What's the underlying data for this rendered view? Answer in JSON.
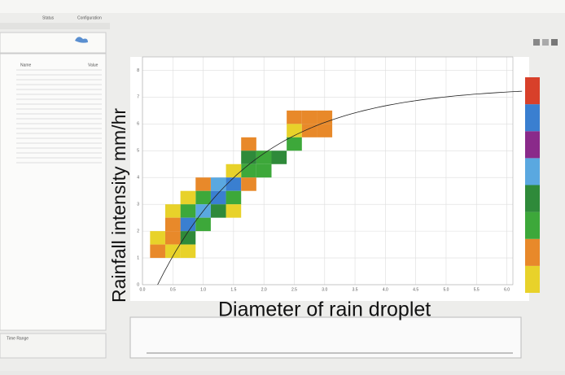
{
  "window": {
    "tabs": [
      "Status",
      "Configuration"
    ],
    "table_header": [
      "Name",
      "Value"
    ],
    "time_range": "Time Range"
  },
  "chart_data": {
    "type": "heatmap",
    "y_label": "Rainfall intensity  mm/hr",
    "x_label": "Diameter of rain droplet",
    "xlim": [
      0,
      6.1
    ],
    "ylim": [
      0,
      8.5
    ],
    "xticks": [
      {
        "value": 0,
        "label": "0.0"
      },
      {
        "value": 0.5,
        "label": "0.5"
      },
      {
        "value": 1,
        "label": "1.0"
      },
      {
        "value": 1.5,
        "label": "1.5"
      },
      {
        "value": 2,
        "label": "2.0"
      },
      {
        "value": 2.5,
        "label": "2.5"
      },
      {
        "value": 3,
        "label": "3.0"
      },
      {
        "value": 3.5,
        "label": "3.5"
      },
      {
        "value": 4,
        "label": "4.0"
      },
      {
        "value": 4.5,
        "label": "4.5"
      },
      {
        "value": 5,
        "label": "5.0"
      },
      {
        "value": 5.5,
        "label": "5.5"
      },
      {
        "value": 6,
        "label": "6.0"
      }
    ],
    "yticks": [
      0,
      1,
      2,
      3,
      4,
      5,
      6,
      7,
      8
    ],
    "grid": true,
    "colorbar": [
      "#e8d22a",
      "#e8892a",
      "#3da83a",
      "#2f8a3a",
      "#5aa8e0",
      "#8a2a8a",
      "#3a7fd0",
      "#d8402a"
    ],
    "cells": [
      {
        "x": 2.5,
        "y": 6.25,
        "color": "#e8892a"
      },
      {
        "x": 2.75,
        "y": 6.25,
        "color": "#e8892a"
      },
      {
        "x": 3.0,
        "y": 6.25,
        "color": "#e8892a"
      },
      {
        "x": 2.5,
        "y": 5.75,
        "color": "#e8d22a"
      },
      {
        "x": 2.75,
        "y": 5.75,
        "color": "#e8892a"
      },
      {
        "x": 3.0,
        "y": 5.75,
        "color": "#e8892a"
      },
      {
        "x": 2.5,
        "y": 5.25,
        "color": "#3da83a"
      },
      {
        "x": 1.75,
        "y": 5.25,
        "color": "#e8892a"
      },
      {
        "x": 2.0,
        "y": 4.75,
        "color": "#3da83a"
      },
      {
        "x": 1.75,
        "y": 4.75,
        "color": "#2f8a3a"
      },
      {
        "x": 2.25,
        "y": 4.75,
        "color": "#2f8a3a"
      },
      {
        "x": 1.75,
        "y": 4.25,
        "color": "#3da83a"
      },
      {
        "x": 2.0,
        "y": 4.25,
        "color": "#3da83a"
      },
      {
        "x": 1.5,
        "y": 4.25,
        "color": "#e8d22a"
      },
      {
        "x": 1.5,
        "y": 3.75,
        "color": "#3a7fd0"
      },
      {
        "x": 1.25,
        "y": 3.75,
        "color": "#5aa8e0"
      },
      {
        "x": 1.75,
        "y": 3.75,
        "color": "#e8892a"
      },
      {
        "x": 1.0,
        "y": 3.75,
        "color": "#e8892a"
      },
      {
        "x": 1.25,
        "y": 3.25,
        "color": "#3a7fd0"
      },
      {
        "x": 1.5,
        "y": 3.25,
        "color": "#3da83a"
      },
      {
        "x": 1.0,
        "y": 3.25,
        "color": "#3da83a"
      },
      {
        "x": 0.75,
        "y": 3.25,
        "color": "#e8d22a"
      },
      {
        "x": 1.5,
        "y": 2.75,
        "color": "#e8d22a"
      },
      {
        "x": 1.0,
        "y": 2.75,
        "color": "#5aa8e0"
      },
      {
        "x": 0.75,
        "y": 2.75,
        "color": "#3da83a"
      },
      {
        "x": 0.5,
        "y": 2.75,
        "color": "#e8d22a"
      },
      {
        "x": 1.25,
        "y": 2.75,
        "color": "#2f8a3a"
      },
      {
        "x": 0.75,
        "y": 2.25,
        "color": "#3a7fd0"
      },
      {
        "x": 0.5,
        "y": 2.25,
        "color": "#e8892a"
      },
      {
        "x": 1.0,
        "y": 2.25,
        "color": "#3da83a"
      },
      {
        "x": 0.75,
        "y": 1.75,
        "color": "#2f8a3a"
      },
      {
        "x": 0.5,
        "y": 1.75,
        "color": "#e8892a"
      },
      {
        "x": 0.25,
        "y": 1.75,
        "color": "#e8d22a"
      },
      {
        "x": 0.5,
        "y": 1.25,
        "color": "#e8d22a"
      },
      {
        "x": 0.75,
        "y": 1.25,
        "color": "#e8d22a"
      },
      {
        "x": 0.25,
        "y": 1.25,
        "color": "#e8892a"
      }
    ]
  }
}
